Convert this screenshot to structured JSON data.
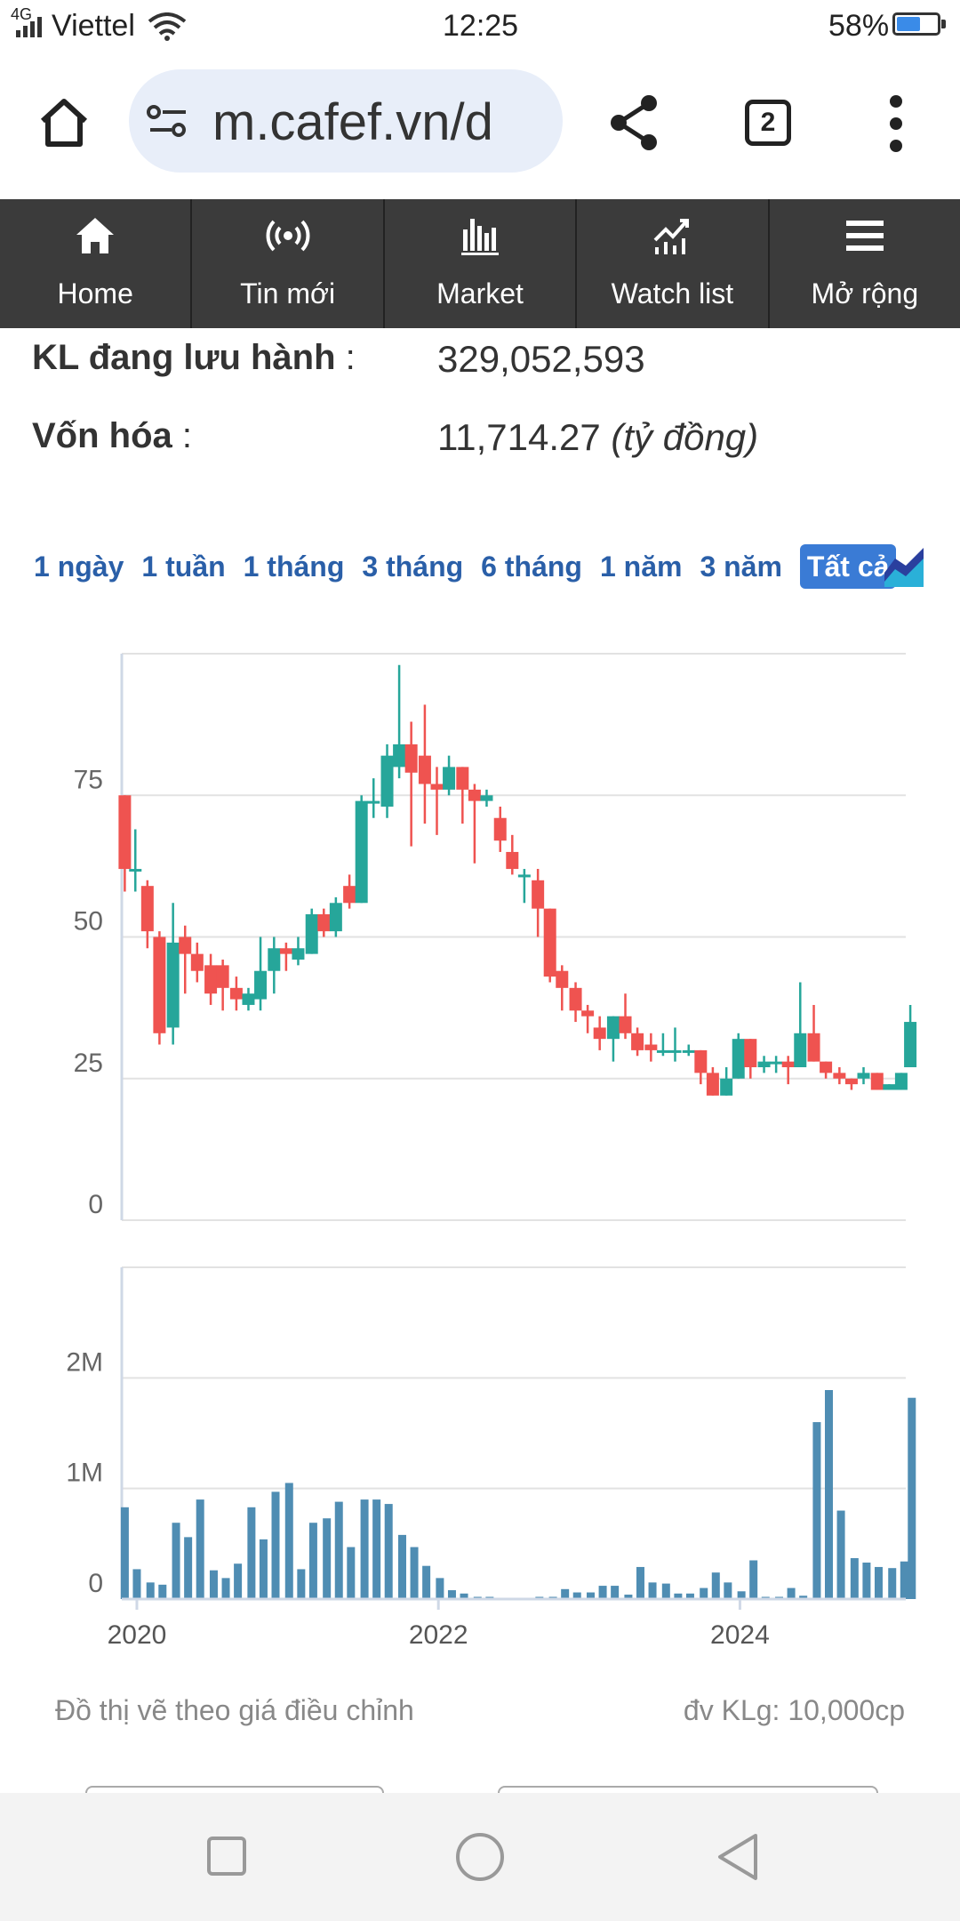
{
  "status_bar": {
    "network": "4G",
    "carrier": "Viettel",
    "time": "12:25",
    "battery": "58%",
    "battery_level": 0.58
  },
  "browser": {
    "url": "m.cafef.vn/d",
    "tab_count": "2"
  },
  "nav_menu": [
    {
      "label": "Home",
      "icon": "home-icon"
    },
    {
      "label": "Tin mới",
      "icon": "broadcast-icon"
    },
    {
      "label": "Market",
      "icon": "bar-chart-icon"
    },
    {
      "label": "Watch list",
      "icon": "trend-icon"
    },
    {
      "label": "Mở rộng",
      "icon": "hamburger-icon"
    }
  ],
  "info": {
    "kl_label": "KL đang lưu hành",
    "kl_value": "329,052,593",
    "cap_label": "Vốn hóa",
    "cap_value": "11,714.27",
    "cap_unit": "(tỷ đồng)",
    "separator": ":"
  },
  "ranges": [
    "1 ngày",
    "1 tuần",
    "1 tháng",
    "3 tháng",
    "6 tháng",
    "1 năm",
    "3 năm",
    "Tất cả"
  ],
  "active_range": "Tất cả",
  "colors": {
    "up": "#26a69a",
    "down": "#ef5350",
    "volume": "#4f8db3",
    "nav_bg": "#3b3b3b",
    "link": "#2a5fa8"
  },
  "chart_data": [
    {
      "type": "candlestick",
      "ylim": [
        0,
        100
      ],
      "yticks": [
        "0",
        "25",
        "50",
        "75"
      ],
      "xticks": [
        "2020",
        "2022",
        "2024"
      ],
      "xrange": [
        2019.9,
        2025.1
      ],
      "grid": true,
      "candles": [
        {
          "t": 2019.92,
          "o": 75,
          "c": 62,
          "h": 75,
          "l": 58
        },
        {
          "t": 2019.99,
          "o": 62,
          "c": 62,
          "h": 69,
          "l": 58
        },
        {
          "t": 2020.07,
          "o": 59,
          "c": 51,
          "h": 60,
          "l": 48
        },
        {
          "t": 2020.15,
          "o": 50,
          "c": 33,
          "h": 51,
          "l": 31
        },
        {
          "t": 2020.24,
          "o": 34,
          "c": 49,
          "h": 56,
          "l": 31
        },
        {
          "t": 2020.32,
          "o": 50,
          "c": 47,
          "h": 52,
          "l": 40
        },
        {
          "t": 2020.4,
          "o": 47,
          "c": 44,
          "h": 49,
          "l": 42
        },
        {
          "t": 2020.49,
          "o": 45,
          "c": 40,
          "h": 47,
          "l": 38
        },
        {
          "t": 2020.57,
          "o": 45,
          "c": 41,
          "h": 46,
          "l": 37
        },
        {
          "t": 2020.66,
          "o": 41,
          "c": 39,
          "h": 43,
          "l": 37
        },
        {
          "t": 2020.74,
          "o": 38,
          "c": 40,
          "h": 41,
          "l": 37
        },
        {
          "t": 2020.82,
          "o": 39,
          "c": 44,
          "h": 50,
          "l": 37
        },
        {
          "t": 2020.91,
          "o": 44,
          "c": 48,
          "h": 50,
          "l": 40
        },
        {
          "t": 2020.99,
          "o": 48,
          "c": 47,
          "h": 49,
          "l": 44
        },
        {
          "t": 2021.07,
          "o": 46,
          "c": 48,
          "h": 50,
          "l": 45
        },
        {
          "t": 2021.16,
          "o": 47,
          "c": 54,
          "h": 55,
          "l": 47
        },
        {
          "t": 2021.24,
          "o": 54,
          "c": 51,
          "h": 55,
          "l": 50
        },
        {
          "t": 2021.32,
          "o": 51,
          "c": 56,
          "h": 57,
          "l": 50
        },
        {
          "t": 2021.41,
          "o": 59,
          "c": 56,
          "h": 61,
          "l": 55
        },
        {
          "t": 2021.49,
          "o": 56,
          "c": 74,
          "h": 75,
          "l": 56
        },
        {
          "t": 2021.57,
          "o": 74,
          "c": 74,
          "h": 78,
          "l": 71
        },
        {
          "t": 2021.66,
          "o": 73,
          "c": 82,
          "h": 84,
          "l": 71
        },
        {
          "t": 2021.74,
          "o": 80,
          "c": 84,
          "h": 98,
          "l": 78
        },
        {
          "t": 2021.82,
          "o": 84,
          "c": 79,
          "h": 88,
          "l": 66
        },
        {
          "t": 2021.91,
          "o": 82,
          "c": 77,
          "h": 91,
          "l": 70
        },
        {
          "t": 2021.99,
          "o": 77,
          "c": 76,
          "h": 80,
          "l": 68
        },
        {
          "t": 2022.07,
          "o": 76,
          "c": 80,
          "h": 82,
          "l": 75
        },
        {
          "t": 2022.16,
          "o": 80,
          "c": 76,
          "h": 80,
          "l": 70
        },
        {
          "t": 2022.24,
          "o": 76,
          "c": 74,
          "h": 77,
          "l": 63
        },
        {
          "t": 2022.32,
          "o": 74,
          "c": 75,
          "h": 76,
          "l": 73
        },
        {
          "t": 2022.41,
          "o": 71,
          "c": 67,
          "h": 73,
          "l": 65
        },
        {
          "t": 2022.49,
          "o": 65,
          "c": 62,
          "h": 68,
          "l": 61
        },
        {
          "t": 2022.57,
          "o": 61,
          "c": 61,
          "h": 62,
          "l": 56
        },
        {
          "t": 2022.66,
          "o": 60,
          "c": 55,
          "h": 62,
          "l": 50
        },
        {
          "t": 2022.74,
          "o": 55,
          "c": 43,
          "h": 55,
          "l": 42
        },
        {
          "t": 2022.82,
          "o": 44,
          "c": 41,
          "h": 45,
          "l": 37
        },
        {
          "t": 2022.91,
          "o": 41,
          "c": 37,
          "h": 42,
          "l": 35
        },
        {
          "t": 2022.99,
          "o": 37,
          "c": 36,
          "h": 38,
          "l": 33
        },
        {
          "t": 2023.07,
          "o": 34,
          "c": 32,
          "h": 36,
          "l": 30
        },
        {
          "t": 2023.16,
          "o": 32,
          "c": 36,
          "h": 36,
          "l": 28
        },
        {
          "t": 2023.24,
          "o": 36,
          "c": 33,
          "h": 40,
          "l": 32
        },
        {
          "t": 2023.32,
          "o": 33,
          "c": 30,
          "h": 34,
          "l": 29
        },
        {
          "t": 2023.41,
          "o": 31,
          "c": 30,
          "h": 33,
          "l": 28
        },
        {
          "t": 2023.49,
          "o": 30,
          "c": 30,
          "h": 33,
          "l": 29
        },
        {
          "t": 2023.57,
          "o": 30,
          "c": 30,
          "h": 34,
          "l": 28
        },
        {
          "t": 2023.66,
          "o": 30,
          "c": 30,
          "h": 31,
          "l": 29
        },
        {
          "t": 2023.74,
          "o": 30,
          "c": 26,
          "h": 30,
          "l": 24
        },
        {
          "t": 2023.82,
          "o": 26,
          "c": 22,
          "h": 27,
          "l": 22
        },
        {
          "t": 2023.91,
          "o": 22,
          "c": 25,
          "h": 27,
          "l": 22
        },
        {
          "t": 2023.99,
          "o": 25,
          "c": 32,
          "h": 33,
          "l": 25
        },
        {
          "t": 2024.07,
          "o": 32,
          "c": 27,
          "h": 32,
          "l": 25
        },
        {
          "t": 2024.16,
          "o": 27,
          "c": 28,
          "h": 29,
          "l": 26
        },
        {
          "t": 2024.24,
          "o": 28,
          "c": 28,
          "h": 29,
          "l": 26
        },
        {
          "t": 2024.32,
          "o": 28,
          "c": 27,
          "h": 29,
          "l": 24
        },
        {
          "t": 2024.4,
          "o": 27,
          "c": 33,
          "h": 42,
          "l": 27
        },
        {
          "t": 2024.49,
          "o": 33,
          "c": 28,
          "h": 38,
          "l": 28
        },
        {
          "t": 2024.57,
          "o": 28,
          "c": 26,
          "h": 28,
          "l": 25
        },
        {
          "t": 2024.66,
          "o": 26,
          "c": 25,
          "h": 27,
          "l": 24
        },
        {
          "t": 2024.74,
          "o": 25,
          "c": 24,
          "h": 25,
          "l": 23
        },
        {
          "t": 2024.82,
          "o": 25,
          "c": 26,
          "h": 27,
          "l": 24
        },
        {
          "t": 2024.91,
          "o": 26,
          "c": 23,
          "h": 26,
          "l": 23
        },
        {
          "t": 2024.99,
          "o": 23,
          "c": 24,
          "h": 24,
          "l": 23
        },
        {
          "t": 2025.07,
          "o": 23,
          "c": 26,
          "h": 26,
          "l": 23
        },
        {
          "t": 2025.13,
          "o": 27,
          "c": 35,
          "h": 38,
          "l": 27
        }
      ]
    },
    {
      "type": "bar",
      "ylim": [
        0,
        3000000
      ],
      "yticks": [
        "0",
        "1M",
        "2M"
      ],
      "xticks": [
        "2020",
        "2022",
        "2024"
      ],
      "xrange": [
        2019.9,
        2025.1
      ],
      "grid": true,
      "x": [
        2019.92,
        2020.0,
        2020.09,
        2020.17,
        2020.26,
        2020.34,
        2020.42,
        2020.51,
        2020.59,
        2020.67,
        2020.76,
        2020.84,
        2020.92,
        2021.01,
        2021.09,
        2021.17,
        2021.26,
        2021.34,
        2021.42,
        2021.51,
        2021.59,
        2021.67,
        2021.76,
        2021.84,
        2021.92,
        2022.01,
        2022.09,
        2022.17,
        2022.26,
        2022.34,
        2022.42,
        2022.51,
        2022.59,
        2022.67,
        2022.76,
        2022.84,
        2022.92,
        2023.01,
        2023.09,
        2023.17,
        2023.26,
        2023.34,
        2023.42,
        2023.51,
        2023.59,
        2023.67,
        2023.76,
        2023.84,
        2023.92,
        2024.01,
        2024.09,
        2024.17,
        2024.26,
        2024.34,
        2024.42,
        2024.51,
        2024.59,
        2024.67,
        2024.76,
        2024.84,
        2024.92,
        2025.01,
        2025.09,
        2025.14
      ],
      "values": [
        830000,
        270000,
        150000,
        130000,
        690000,
        560000,
        900000,
        260000,
        190000,
        320000,
        830000,
        540000,
        970000,
        1050000,
        270000,
        690000,
        730000,
        880000,
        470000,
        900000,
        900000,
        860000,
        580000,
        470000,
        300000,
        190000,
        80000,
        50000,
        20000,
        20000,
        0,
        0,
        10000,
        20000,
        20000,
        90000,
        60000,
        60000,
        120000,
        120000,
        40000,
        290000,
        150000,
        140000,
        50000,
        50000,
        100000,
        240000,
        150000,
        70000,
        350000,
        20000,
        20000,
        100000,
        30000,
        1600000,
        1890000,
        800000,
        370000,
        330000,
        290000,
        280000,
        340000,
        1820000
      ]
    }
  ],
  "footnote_left": "Đồ thị vẽ theo giá điều chỉnh",
  "footnote_right": "đv KLg: 10,000cp"
}
